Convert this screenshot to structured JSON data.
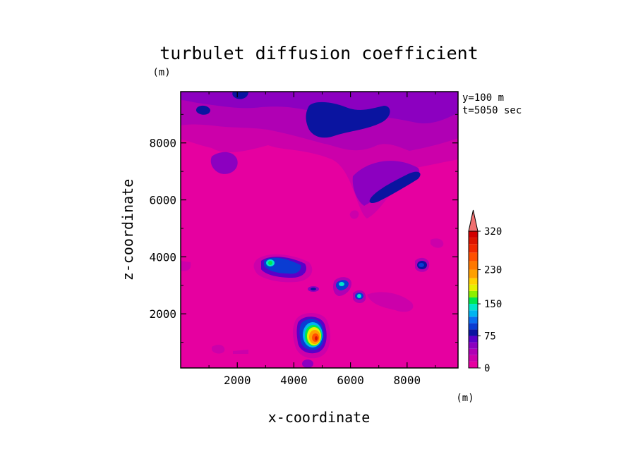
{
  "chart_data": {
    "type": "heatmap",
    "title": "turbulet diffusion coefficient",
    "xlabel": "x-coordinate",
    "ylabel": "z-coordinate",
    "x_unit": "(m)",
    "y_unit": "(m)",
    "annotations": [
      "y=100 m",
      "t=5050 sec"
    ],
    "xlim": [
      0,
      9800
    ],
    "ylim": [
      100,
      9800
    ],
    "x_ticks": [
      2000,
      4000,
      6000,
      8000
    ],
    "y_ticks": [
      2000,
      4000,
      6000,
      8000
    ],
    "colorbar": {
      "levels": [
        0,
        15,
        30,
        45,
        60,
        75,
        90,
        105,
        120,
        135,
        150,
        165,
        180,
        195,
        210,
        230,
        250,
        270,
        290,
        305,
        320
      ],
      "labels": [
        "0",
        "75",
        "150",
        "230",
        "320"
      ],
      "label_values": [
        0,
        75,
        150,
        230,
        320
      ],
      "max_arrow": true,
      "colors": [
        "#e600a0",
        "#cc00aa",
        "#b000b4",
        "#8c00c0",
        "#5a00c8",
        "#0a14a0",
        "#0a3cd2",
        "#0a6ef0",
        "#00b4f0",
        "#00e6c8",
        "#00e650",
        "#8cf000",
        "#e6f000",
        "#ffd200",
        "#ffa000",
        "#ff7800",
        "#ff5000",
        "#f02800",
        "#dc1400",
        "#d20000"
      ]
    },
    "features": [
      {
        "kind": "region",
        "x": [
          0,
          9800
        ],
        "z": [
          8300,
          9800
        ],
        "value": 25
      },
      {
        "kind": "blob",
        "x": 4800,
        "z": 1300,
        "peak": 240
      },
      {
        "kind": "blob",
        "x": 3300,
        "z": 3850,
        "peak": 150
      },
      {
        "kind": "blob",
        "x": 3800,
        "z": 3700,
        "peak": 90
      },
      {
        "kind": "blob",
        "x": 5800,
        "z": 3100,
        "peak": 140
      },
      {
        "kind": "blob",
        "x": 6450,
        "z": 2700,
        "peak": 130
      },
      {
        "kind": "blob",
        "x": 8700,
        "z": 3800,
        "peak": 90
      },
      {
        "kind": "blob",
        "x": 5150,
        "z": 9050,
        "peak": 80
      },
      {
        "kind": "blob",
        "x": 7500,
        "z": 6600,
        "peak": 80
      }
    ]
  }
}
